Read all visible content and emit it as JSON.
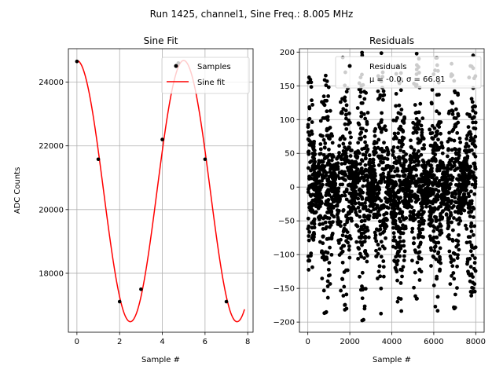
{
  "suptitle": "Run 1425, channel1, Sine Freq.: 8.005 MHz",
  "chart_data": [
    {
      "type": "scatter+line",
      "title": "Sine Fit",
      "xlabel": "Sample #",
      "ylabel": "ADC Counts",
      "xlim": [
        -0.4,
        8.25
      ],
      "ylim": [
        16150,
        25050
      ],
      "xticks": [
        0,
        2,
        4,
        6,
        8
      ],
      "yticks": [
        18000,
        20000,
        22000,
        24000
      ],
      "xtick_labels": [
        "0",
        "2",
        "4",
        "6",
        "8"
      ],
      "ytick_labels": [
        "18000",
        "20000",
        "22000",
        "24000"
      ],
      "grid": true,
      "legend": {
        "placement": "top-right",
        "entries": [
          "Samples",
          "Sine fit"
        ]
      },
      "series": [
        {
          "name": "Samples",
          "kind": "points",
          "color": "#000000",
          "x": [
            0,
            1,
            2,
            3,
            4,
            4.75,
            6,
            7
          ],
          "y": [
            24650,
            21580,
            17110,
            17500,
            22200,
            24600,
            21580,
            17110
          ]
        },
        {
          "name": "Sine fit",
          "kind": "line",
          "color": "#ff0000",
          "offset": 20580,
          "amplitude": 4100,
          "frequency": 0.2,
          "x_range": [
            0,
            7.85
          ]
        }
      ]
    },
    {
      "type": "scatter",
      "title": "Residuals",
      "xlabel": "Sample #",
      "ylabel": "",
      "xlim": [
        -400,
        8400
      ],
      "ylim": [
        -215,
        205
      ],
      "xticks": [
        0,
        2000,
        4000,
        6000,
        8000
      ],
      "yticks": [
        -200,
        -150,
        -100,
        -50,
        0,
        50,
        100,
        150,
        200
      ],
      "xtick_labels": [
        "0",
        "2000",
        "4000",
        "6000",
        "8000"
      ],
      "ytick_labels": [
        "−200",
        "−150",
        "−100",
        "−50",
        "0",
        "50",
        "100",
        "150",
        "200"
      ],
      "grid": true,
      "legend": {
        "placement": "top-right",
        "entries": [
          "Residuals"
        ],
        "stats_line": "μ = -0.0, σ = 66.81"
      },
      "series": [
        {
          "name": "Residuals",
          "color": "#000000",
          "n_points": 8000,
          "mean": -0.0,
          "std": 66.81,
          "envelope_period": 1740,
          "envelope_peak_x": [
            0,
            1740,
            3480,
            5220,
            6960
          ],
          "envelope_max": 205,
          "envelope_min": 30
        }
      ]
    }
  ]
}
